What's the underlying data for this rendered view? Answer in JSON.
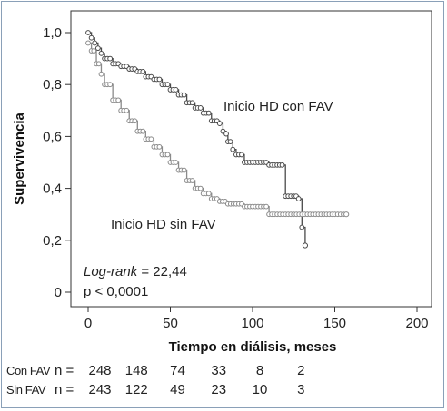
{
  "chart_data": {
    "type": "line",
    "xlabel": "Tiempo en diálisis, meses",
    "ylabel": "Supervivencia",
    "xlim": [
      0,
      200
    ],
    "ylim": [
      0,
      1
    ],
    "x_ticks": [
      0,
      50,
      100,
      150,
      200
    ],
    "y_ticks": [
      "0",
      "0,2",
      "0,4",
      "0,6",
      "0,8",
      "1,0"
    ],
    "grid": false,
    "series": [
      {
        "name": "Inicio HD con FAV",
        "color": "#4a4a4a",
        "points": [
          [
            0,
            1.0
          ],
          [
            2,
            0.98
          ],
          [
            4,
            0.96
          ],
          [
            6,
            0.94
          ],
          [
            8,
            0.92
          ],
          [
            10,
            0.9
          ],
          [
            15,
            0.88
          ],
          [
            20,
            0.87
          ],
          [
            25,
            0.86
          ],
          [
            30,
            0.85
          ],
          [
            35,
            0.83
          ],
          [
            40,
            0.82
          ],
          [
            45,
            0.8
          ],
          [
            50,
            0.78
          ],
          [
            55,
            0.76
          ],
          [
            60,
            0.73
          ],
          [
            65,
            0.71
          ],
          [
            70,
            0.69
          ],
          [
            75,
            0.66
          ],
          [
            80,
            0.65
          ],
          [
            82,
            0.62
          ],
          [
            84,
            0.61
          ],
          [
            85,
            0.58
          ],
          [
            88,
            0.55
          ],
          [
            90,
            0.53
          ],
          [
            95,
            0.53
          ],
          [
            95,
            0.5
          ],
          [
            100,
            0.5
          ],
          [
            105,
            0.5
          ],
          [
            110,
            0.49
          ],
          [
            115,
            0.49
          ],
          [
            118,
            0.49
          ],
          [
            120,
            0.37
          ],
          [
            125,
            0.37
          ],
          [
            128,
            0.36
          ],
          [
            130,
            0.36
          ],
          [
            130,
            0.25
          ],
          [
            132,
            0.25
          ],
          [
            132,
            0.18
          ]
        ]
      },
      {
        "name": "Inicio HD sin FAV",
        "color": "#8a8a8a",
        "points": [
          [
            0,
            0.96
          ],
          [
            2,
            0.93
          ],
          [
            5,
            0.88
          ],
          [
            8,
            0.84
          ],
          [
            10,
            0.8
          ],
          [
            15,
            0.74
          ],
          [
            20,
            0.7
          ],
          [
            25,
            0.66
          ],
          [
            30,
            0.62
          ],
          [
            35,
            0.59
          ],
          [
            40,
            0.56
          ],
          [
            45,
            0.53
          ],
          [
            50,
            0.5
          ],
          [
            55,
            0.47
          ],
          [
            60,
            0.43
          ],
          [
            65,
            0.4
          ],
          [
            70,
            0.38
          ],
          [
            75,
            0.36
          ],
          [
            80,
            0.35
          ],
          [
            85,
            0.34
          ],
          [
            90,
            0.34
          ],
          [
            95,
            0.33
          ],
          [
            100,
            0.33
          ],
          [
            105,
            0.33
          ],
          [
            110,
            0.3
          ],
          [
            120,
            0.3
          ],
          [
            130,
            0.3
          ],
          [
            140,
            0.3
          ],
          [
            150,
            0.3
          ],
          [
            157,
            0.3
          ]
        ]
      }
    ],
    "annotations": [
      "Log-rank = 22,44",
      "p < 0,0001"
    ],
    "risk_table": {
      "rows": [
        {
          "label": "Con FAV",
          "prefix": "n =",
          "values": [
            "248",
            "148",
            "74",
            "33",
            "8",
            "2"
          ]
        },
        {
          "label": "Sin FAV",
          "prefix": "n =",
          "values": [
            "243",
            "122",
            "49",
            "23",
            "10",
            "3"
          ]
        }
      ]
    }
  },
  "labels": {
    "series1": "Inicio HD con FAV",
    "series2": "Inicio HD sin FAV",
    "logrank_italic": "Log-rank",
    "logrank_value": " = 22,44",
    "pvalue": "p < 0,0001"
  }
}
